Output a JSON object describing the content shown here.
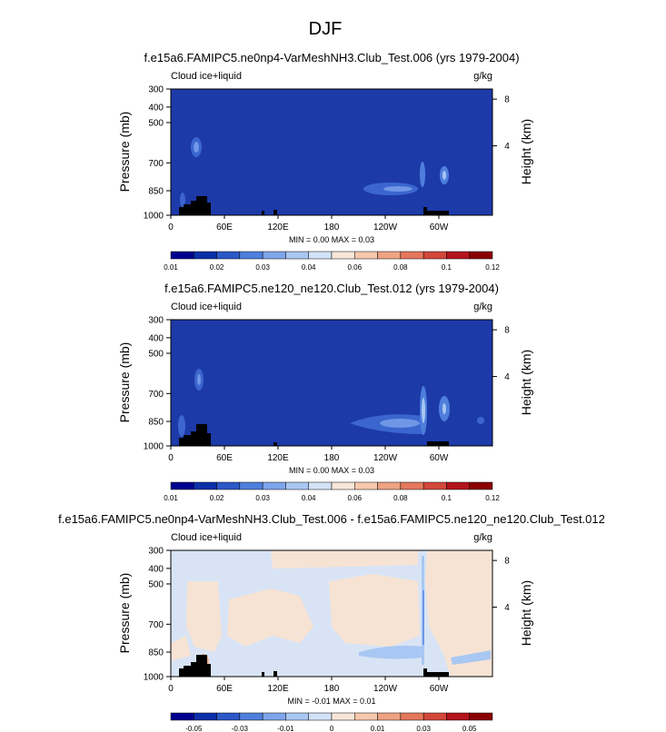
{
  "page_title": "DJF",
  "chart_data": [
    {
      "type": "heatmap",
      "title": "f.e15a6.FAMIPC5.ne0np4-VarMeshNH3.Club_Test.006 (yrs 1979-2004)",
      "field_label": "Cloud ice+liquid",
      "units": "g/kg",
      "ylabel": "Pressure (mb)",
      "ylabel_right": "Height (km)",
      "xticks": [
        "0",
        "60E",
        "120E",
        "180",
        "120W",
        "60W"
      ],
      "yticks": [
        "300",
        "400",
        "500",
        "700",
        "850",
        "1000"
      ],
      "yticks_right": [
        "8",
        "4"
      ],
      "stats": "MIN =   0.00   MAX =   0.03",
      "colorbar_labels": [
        "0.01",
        "0.02",
        "0.03",
        "0.04",
        "0.06",
        "0.08",
        "0.1",
        "0.12"
      ],
      "colors": [
        "#00008f",
        "#0b2fa8",
        "#2c58c7",
        "#4e7fdc",
        "#7ea6eb",
        "#a9c7f3",
        "#d3e2f7",
        "#f8e6d8",
        "#f6c8ad",
        "#efa383",
        "#e4775c",
        "#d2473a",
        "#b3141c",
        "#8a0000"
      ],
      "background": "#1d3aa9"
    },
    {
      "type": "heatmap",
      "title": "f.e15a6.FAMIPC5.ne120_ne120.Club_Test.012 (yrs 1979-2004)",
      "field_label": "Cloud ice+liquid",
      "units": "g/kg",
      "ylabel": "Pressure (mb)",
      "ylabel_right": "Height (km)",
      "xticks": [
        "0",
        "60E",
        "120E",
        "180",
        "120W",
        "60W"
      ],
      "yticks": [
        "300",
        "400",
        "500",
        "700",
        "850",
        "1000"
      ],
      "yticks_right": [
        "8",
        "4"
      ],
      "stats": "MIN =   0.00   MAX =   0.03",
      "colorbar_labels": [
        "0.01",
        "0.02",
        "0.03",
        "0.04",
        "0.06",
        "0.08",
        "0.1",
        "0.12"
      ],
      "colors": [
        "#00008f",
        "#0b2fa8",
        "#2c58c7",
        "#4e7fdc",
        "#7ea6eb",
        "#a9c7f3",
        "#d3e2f7",
        "#f8e6d8",
        "#f6c8ad",
        "#efa383",
        "#e4775c",
        "#d2473a",
        "#b3141c",
        "#8a0000"
      ],
      "background": "#1d3aa9"
    },
    {
      "type": "heatmap",
      "title": "f.e15a6.FAMIPC5.ne0np4-VarMeshNH3.Club_Test.006 - f.e15a6.FAMIPC5.ne120_ne120.Club_Test.012",
      "field_label": "Cloud ice+liquid",
      "units": "g/kg",
      "ylabel": "Pressure (mb)",
      "ylabel_right": "Height (km)",
      "xticks": [
        "0",
        "60E",
        "120E",
        "180",
        "120W",
        "60W"
      ],
      "yticks": [
        "300",
        "400",
        "500",
        "700",
        "850",
        "1000"
      ],
      "yticks_right": [
        "8",
        "4"
      ],
      "stats": "MIN =  -0.01   MAX =   0.01",
      "colorbar_labels": [
        "-0.05",
        "-0.03",
        "-0.01",
        "0",
        "0.01",
        "0.03",
        "0.05"
      ],
      "colors": [
        "#00008f",
        "#0b2fa8",
        "#2c58c7",
        "#4e7fdc",
        "#7ea6eb",
        "#a9c7f3",
        "#d3e2f7",
        "#f8e6d8",
        "#f6c8ad",
        "#efa383",
        "#e4775c",
        "#d2473a",
        "#b3141c",
        "#8a0000"
      ],
      "background": "#d8e4f5"
    }
  ]
}
